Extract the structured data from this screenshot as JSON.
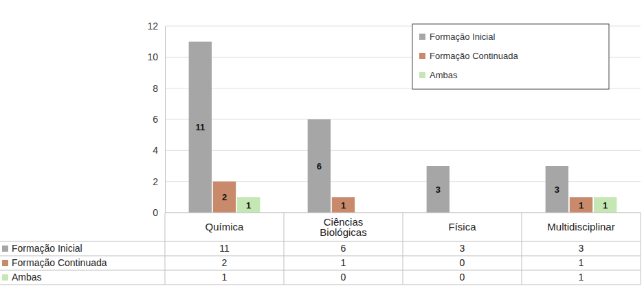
{
  "chart_data": {
    "type": "bar",
    "categories": [
      "Química",
      "Ciências Biológicas",
      "Física",
      "Multidisciplinar"
    ],
    "series": [
      {
        "name": "Formação Inicial",
        "color": "#a6a6a6",
        "values": [
          11,
          6,
          3,
          3
        ]
      },
      {
        "name": "Formação Continuada",
        "color": "#c98a6b",
        "values": [
          2,
          1,
          0,
          1
        ]
      },
      {
        "name": "Ambas",
        "color": "#c5e7b4",
        "values": [
          1,
          0,
          0,
          1
        ]
      }
    ],
    "ylim": [
      0,
      12
    ],
    "yticks": [
      0,
      2,
      4,
      6,
      8,
      10,
      12
    ],
    "grid": true,
    "legend": "top-right",
    "data_labels": true
  }
}
